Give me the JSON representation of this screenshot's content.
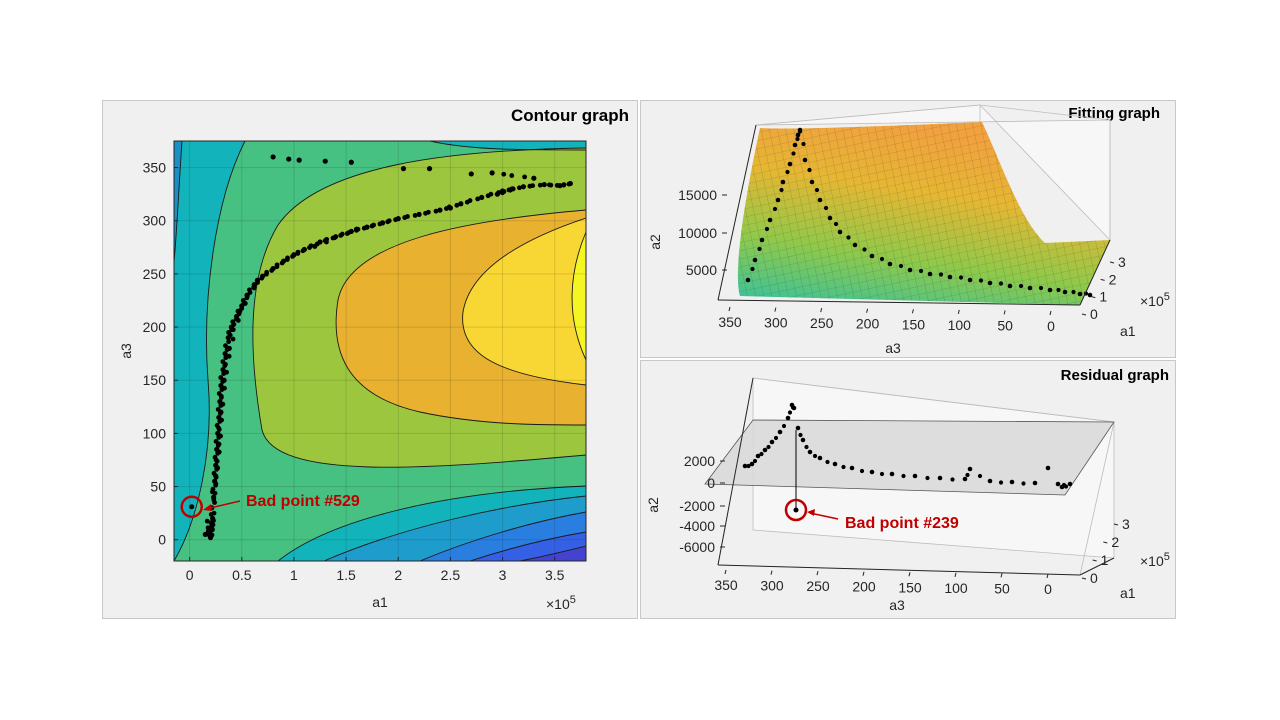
{
  "panels": {
    "contour": {
      "title": "Contour graph"
    },
    "fitting": {
      "title": "Fitting graph"
    },
    "residual": {
      "title": "Residual graph"
    }
  },
  "colors": {
    "marker": "#000000",
    "annotation": "#c00000",
    "residual_plane": "#d9d9d9"
  },
  "chart_data": [
    {
      "type": "contour",
      "title": "Contour graph",
      "xlabel": "a1",
      "ylabel": "a3",
      "x_exponent": "×10",
      "x_exponent_power": "5",
      "xlim": [
        -0.15,
        3.8
      ],
      "ylim": [
        -20,
        375
      ],
      "xticks": [
        0,
        0.5,
        1,
        1.5,
        2,
        2.5,
        3,
        3.5
      ],
      "xtick_labels": [
        "0",
        "0.5",
        "1",
        "1.5",
        "2",
        "2.5",
        "3",
        "3.5"
      ],
      "yticks": [
        0,
        50,
        100,
        150,
        200,
        250,
        300,
        350
      ],
      "ytick_labels": [
        "0",
        "50",
        "100",
        "150",
        "200",
        "250",
        "300",
        "350"
      ],
      "grid": true,
      "annotation": {
        "text": "Bad point #529",
        "x": 0.02,
        "y": 31
      },
      "points": [
        [
          0.18,
          8
        ],
        [
          0.2,
          2
        ],
        [
          0.21,
          12
        ],
        [
          0.22,
          20
        ],
        [
          0.23,
          40
        ],
        [
          0.24,
          55
        ],
        [
          0.25,
          70
        ],
        [
          0.26,
          85
        ],
        [
          0.27,
          100
        ],
        [
          0.28,
          115
        ],
        [
          0.29,
          130
        ],
        [
          0.3,
          145
        ],
        [
          0.32,
          160
        ],
        [
          0.34,
          175
        ],
        [
          0.37,
          190
        ],
        [
          0.4,
          200
        ],
        [
          0.45,
          210
        ],
        [
          0.5,
          220
        ],
        [
          0.55,
          230
        ],
        [
          0.62,
          240
        ],
        [
          0.7,
          248
        ],
        [
          0.8,
          255
        ],
        [
          0.9,
          262
        ],
        [
          1.0,
          268
        ],
        [
          1.1,
          273
        ],
        [
          1.25,
          280
        ],
        [
          1.4,
          285
        ],
        [
          1.55,
          290
        ],
        [
          1.7,
          294
        ],
        [
          1.85,
          298
        ],
        [
          2.0,
          302
        ],
        [
          2.2,
          306
        ],
        [
          2.4,
          310
        ],
        [
          2.6,
          316
        ],
        [
          2.8,
          322
        ],
        [
          3.0,
          328
        ],
        [
          3.2,
          332
        ],
        [
          3.4,
          334
        ],
        [
          3.55,
          333
        ],
        [
          3.65,
          335
        ],
        [
          0.8,
          360
        ],
        [
          0.95,
          358
        ],
        [
          1.05,
          357
        ],
        [
          1.3,
          356
        ],
        [
          1.55,
          355
        ],
        [
          2.05,
          349
        ],
        [
          2.3,
          349
        ],
        [
          2.7,
          344
        ],
        [
          2.9,
          345
        ],
        [
          3.3,
          340
        ],
        [
          0.15,
          5
        ],
        [
          0.21,
          30
        ],
        [
          0.25,
          60
        ],
        [
          0.28,
          90
        ],
        [
          0.3,
          120
        ],
        [
          0.33,
          150
        ],
        [
          0.38,
          180
        ],
        [
          0.48,
          215
        ],
        [
          0.65,
          244
        ],
        [
          1.2,
          276
        ],
        [
          1.6,
          292
        ],
        [
          2.5,
          312
        ],
        [
          3.1,
          330
        ],
        [
          2.95,
          325
        ]
      ]
    },
    {
      "type": "surface3d",
      "title": "Fitting graph",
      "xlabel": "a3",
      "ylabel": "a1",
      "zlabel": "a2",
      "y_exponent": "×10",
      "y_exponent_power": "5",
      "xticks": [
        350,
        300,
        250,
        200,
        150,
        100,
        50,
        0
      ],
      "xtick_labels": [
        "350",
        "300",
        "250",
        "200",
        "150",
        "100",
        "50",
        "0"
      ],
      "yticks": [
        0,
        1,
        2,
        3
      ],
      "ytick_labels": [
        "0",
        "1",
        "2",
        "3"
      ],
      "zticks": [
        5000,
        10000,
        15000
      ],
      "ztick_labels": [
        "5000",
        "10000",
        "15000"
      ]
    },
    {
      "type": "scatter3d",
      "title": "Residual graph",
      "xlabel": "a3",
      "ylabel": "a1",
      "zlabel": "a2",
      "y_exponent": "×10",
      "y_exponent_power": "5",
      "xticks": [
        350,
        300,
        250,
        200,
        150,
        100,
        50,
        0
      ],
      "xtick_labels": [
        "350",
        "300",
        "250",
        "200",
        "150",
        "100",
        "50",
        "0"
      ],
      "yticks": [
        0,
        1,
        2,
        3
      ],
      "ytick_labels": [
        "0",
        "1",
        "2",
        "3"
      ],
      "zticks": [
        2000,
        0,
        -2000,
        -4000,
        -6000
      ],
      "ztick_labels": [
        "2000",
        "0",
        "-2000",
        "-4000",
        "-6000"
      ],
      "annotation": {
        "text": "Bad point #239",
        "a3": 270,
        "a2": -2600
      }
    }
  ]
}
